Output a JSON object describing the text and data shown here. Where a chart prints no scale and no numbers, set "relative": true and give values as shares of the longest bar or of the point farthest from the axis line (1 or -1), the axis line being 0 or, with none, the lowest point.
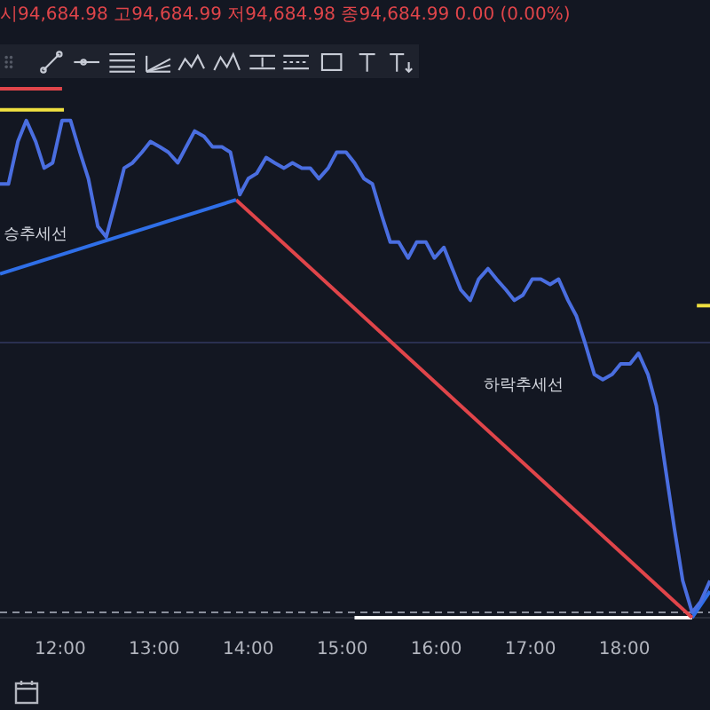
{
  "chart_data": {
    "type": "line",
    "relative": true,
    "title": "시94,684.98 고94,684.99 저94,684.98 종94,684.99 0.00 (0.00%)",
    "xlim": [
      11.36,
      18.91
    ],
    "xticks": [
      {
        "value": 12,
        "label": "12:00"
      },
      {
        "value": 13,
        "label": "13:00"
      },
      {
        "value": 14,
        "label": "14:00"
      },
      {
        "value": 15,
        "label": "15:00"
      },
      {
        "value": 16,
        "label": "16:00"
      },
      {
        "value": 17,
        "label": "17:00"
      },
      {
        "value": 18,
        "label": "18:00"
      }
    ],
    "tick_labels": "x",
    "grid": false,
    "legend": false,
    "marker": "none",
    "series": [
      {
        "color": "#4a6ee0",
        "x": [
          11.36,
          11.45,
          11.55,
          11.64,
          11.74,
          11.83,
          11.92,
          12.02,
          12.11,
          12.21,
          12.3,
          12.4,
          12.49,
          12.58,
          12.68,
          12.77,
          12.87,
          12.96,
          13.06,
          13.15,
          13.25,
          13.34,
          13.43,
          13.53,
          13.62,
          13.72,
          13.81,
          13.91,
          14.0,
          14.09,
          14.19,
          14.28,
          14.38,
          14.47,
          14.57,
          14.66,
          14.75,
          14.85,
          14.94,
          15.04,
          15.13,
          15.23,
          15.32,
          15.42,
          15.51,
          15.6,
          15.7,
          15.79,
          15.89,
          15.98,
          16.08,
          16.17,
          16.26,
          16.36,
          16.45,
          16.55,
          16.64,
          16.74,
          16.83,
          16.92,
          17.02,
          17.11,
          17.21,
          17.3,
          17.4,
          17.49,
          17.58,
          17.68,
          17.77,
          17.87,
          17.96,
          18.06,
          18.15,
          18.25,
          18.34,
          18.43,
          18.53,
          18.62,
          18.72,
          18.81,
          18.91
        ],
        "values": [
          0.82,
          0.82,
          0.9,
          0.94,
          0.9,
          0.85,
          0.86,
          0.94,
          0.94,
          0.88,
          0.83,
          0.74,
          0.72,
          0.78,
          0.85,
          0.86,
          0.88,
          0.9,
          0.89,
          0.88,
          0.86,
          0.89,
          0.92,
          0.91,
          0.89,
          0.89,
          0.88,
          0.8,
          0.83,
          0.84,
          0.87,
          0.86,
          0.85,
          0.86,
          0.85,
          0.85,
          0.83,
          0.85,
          0.88,
          0.88,
          0.86,
          0.83,
          0.82,
          0.76,
          0.71,
          0.71,
          0.68,
          0.71,
          0.71,
          0.68,
          0.7,
          0.66,
          0.62,
          0.6,
          0.64,
          0.66,
          0.64,
          0.62,
          0.6,
          0.61,
          0.64,
          0.64,
          0.63,
          0.64,
          0.6,
          0.57,
          0.52,
          0.46,
          0.45,
          0.46,
          0.48,
          0.48,
          0.5,
          0.46,
          0.4,
          0.29,
          0.17,
          0.07,
          0.01,
          0.03,
          0.07
        ]
      },
      {
        "color": "#2f6fe8",
        "x": [
          11.36,
          13.87
        ],
        "values": [
          0.65,
          0.79
        ]
      },
      {
        "color": "#e0454a",
        "x": [
          13.87,
          18.72
        ],
        "values": [
          0.79,
          0
        ]
      },
      {
        "color": "#2f6fe8",
        "x": [
          18.72,
          18.91
        ],
        "values": [
          0,
          0.05
        ]
      },
      {
        "color": "#ffffff",
        "x": [
          15.13,
          18.72
        ],
        "values": [
          0,
          0
        ]
      },
      {
        "color": "#e0454a",
        "x": [
          11.36,
          12.02
        ],
        "values": [
          1,
          1
        ]
      },
      {
        "color": "#f0e040",
        "x": [
          11.36,
          12.04
        ],
        "values": [
          0.96,
          0.96
        ]
      },
      {
        "color": "#f0e040",
        "x": [
          18.77,
          18.91
        ],
        "values": [
          0.59,
          0.59
        ]
      }
    ],
    "ref_lines": [
      {
        "axis": "y",
        "value": 0.01,
        "color": "#8a8f9c",
        "line_style": "dashed"
      },
      {
        "axis": "y",
        "value": 0.52,
        "color": "#2a3050"
      }
    ],
    "annotations": [
      "승추세선",
      "하락추세선"
    ]
  }
}
